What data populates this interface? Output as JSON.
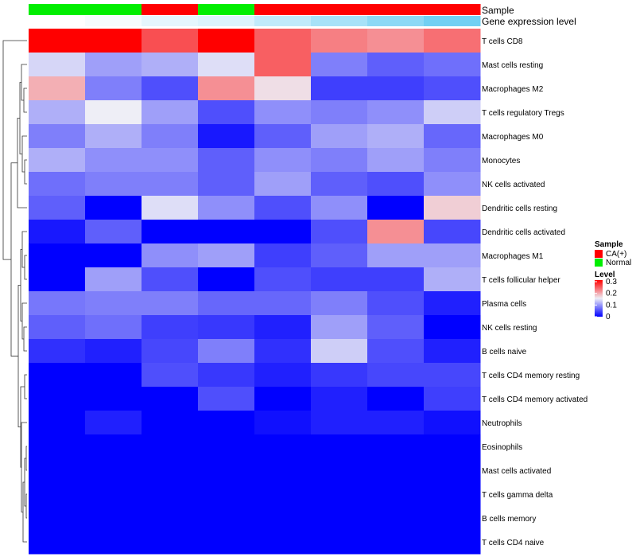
{
  "chart_data": {
    "type": "heatmap",
    "annotation_labels": {
      "sample": "Sample",
      "gene_expression": "Gene expression level"
    },
    "sample_annotation": [
      "Normal",
      "Normal",
      "CA(+)",
      "Normal",
      "CA(+)",
      "CA(+)",
      "CA(+)",
      "CA(+)"
    ],
    "gene_expression_annotation": [
      0.0,
      0.05,
      0.15,
      0.2,
      0.35,
      0.5,
      0.65,
      0.8
    ],
    "rows": [
      "T cells CD8",
      "Mast cells resting",
      "Macrophages M2",
      "T cells regulatory  Tregs",
      "Macrophages M0",
      "Monocytes",
      "NK cells activated",
      "Dendritic cells resting",
      "Dendritic cells activated",
      "Macrophages M1",
      "T cells follicular helper",
      "Plasma cells",
      "NK cells resting",
      "B cells naive",
      "T cells CD4 memory resting",
      "T cells CD4 memory activated",
      "Neutrophils",
      "Eosinophils",
      "Mast cells activated",
      "T cells gamma delta",
      "B cells memory",
      "T cells CD4 naive"
    ],
    "values": [
      [
        0.3,
        0.3,
        0.25,
        0.3,
        0.24,
        0.22,
        0.21,
        0.23
      ],
      [
        0.135,
        0.1,
        0.11,
        0.14,
        0.24,
        0.08,
        0.06,
        0.07
      ],
      [
        0.19,
        0.08,
        0.05,
        0.21,
        0.16,
        0.04,
        0.04,
        0.05
      ],
      [
        0.11,
        0.15,
        0.1,
        0.05,
        0.09,
        0.08,
        0.09,
        0.13
      ],
      [
        0.08,
        0.11,
        0.08,
        0.015,
        0.06,
        0.1,
        0.11,
        0.065
      ],
      [
        0.11,
        0.09,
        0.09,
        0.06,
        0.09,
        0.08,
        0.1,
        0.08
      ],
      [
        0.07,
        0.08,
        0.08,
        0.06,
        0.1,
        0.06,
        0.05,
        0.09
      ],
      [
        0.06,
        0.0,
        0.14,
        0.09,
        0.05,
        0.09,
        0.0,
        0.17
      ],
      [
        0.015,
        0.06,
        0.0,
        0.0,
        0.0,
        0.05,
        0.21,
        0.045
      ],
      [
        0.0,
        0.0,
        0.09,
        0.1,
        0.04,
        0.06,
        0.1,
        0.1
      ],
      [
        0.0,
        0.1,
        0.05,
        0.0,
        0.05,
        0.04,
        0.04,
        0.11
      ],
      [
        0.075,
        0.08,
        0.08,
        0.065,
        0.065,
        0.08,
        0.05,
        0.02
      ],
      [
        0.06,
        0.07,
        0.04,
        0.035,
        0.02,
        0.1,
        0.06,
        0.0
      ],
      [
        0.03,
        0.02,
        0.045,
        0.08,
        0.03,
        0.13,
        0.05,
        0.02
      ],
      [
        0.0,
        0.0,
        0.05,
        0.035,
        0.02,
        0.035,
        0.045,
        0.045
      ],
      [
        0.0,
        0.0,
        0.0,
        0.05,
        0.0,
        0.02,
        0.0,
        0.04
      ],
      [
        0.0,
        0.02,
        0.0,
        0.0,
        0.01,
        0.02,
        0.02,
        0.01
      ],
      [
        0.0,
        0.0,
        0.0,
        0.0,
        0.0,
        0.0,
        0.0,
        0.0
      ],
      [
        0.0,
        0.0,
        0.0,
        0.0,
        0.0,
        0.0,
        0.0,
        0.0
      ],
      [
        0.0,
        0.0,
        0.0,
        0.0,
        0.0,
        0.0,
        0.0,
        0.0
      ],
      [
        0.0,
        0.0,
        0.0,
        0.0,
        0.0,
        0.0,
        0.0,
        0.0
      ],
      [
        0.0,
        0.0,
        0.0,
        0.0,
        0.0,
        0.0,
        0.0,
        0.0
      ]
    ],
    "legend": {
      "sample_title": "Sample",
      "sample_entries": [
        {
          "label": "CA(+)",
          "color": "#ff0000"
        },
        {
          "label": "Normal",
          "color": "#00ee00"
        }
      ],
      "level_title": "Level",
      "level_ticks": [
        "0.3",
        "0.2",
        "0.1",
        "0"
      ],
      "level_range": [
        0,
        0.3
      ]
    },
    "colors": {
      "low": "#0000ff",
      "mid": "#eeeef6",
      "high": "#ff0000",
      "gene_low": "#ffffff",
      "gene_high": "#4fc4f0"
    }
  }
}
